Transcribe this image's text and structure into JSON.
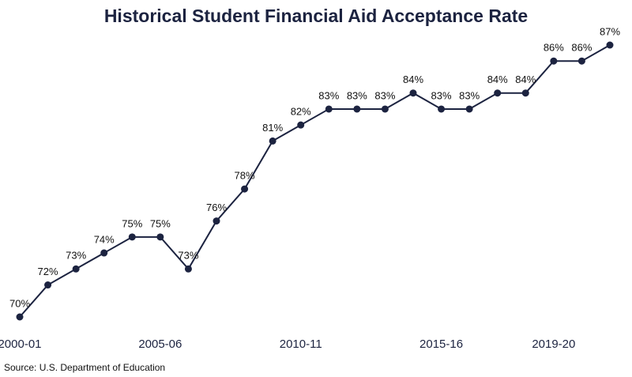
{
  "chart_data": {
    "type": "line",
    "title": "Historical Student Financial Aid Acceptance Rate",
    "source": "Source: U.S. Department of Education",
    "categories": [
      "2000-01",
      null,
      null,
      null,
      null,
      "2005-06",
      null,
      null,
      null,
      null,
      "2010-11",
      null,
      null,
      null,
      null,
      "2015-16",
      null,
      null,
      null,
      "2019-20",
      null,
      null
    ],
    "values": [
      70,
      72,
      73,
      74,
      75,
      75,
      73,
      76,
      78,
      81,
      82,
      83,
      83,
      83,
      84,
      83,
      83,
      84,
      84,
      86,
      86,
      87
    ],
    "value_labels": [
      "70%",
      "72%",
      "73%",
      "74%",
      "75%",
      "75%",
      "73%",
      "76%",
      "78%",
      "81%",
      "82%",
      "83%",
      "83%",
      "83%",
      "84%",
      "83%",
      "83%",
      "84%",
      "84%",
      "86%",
      "86%",
      "87%"
    ],
    "color": "#1c2340",
    "ylim": [
      70,
      87
    ]
  }
}
